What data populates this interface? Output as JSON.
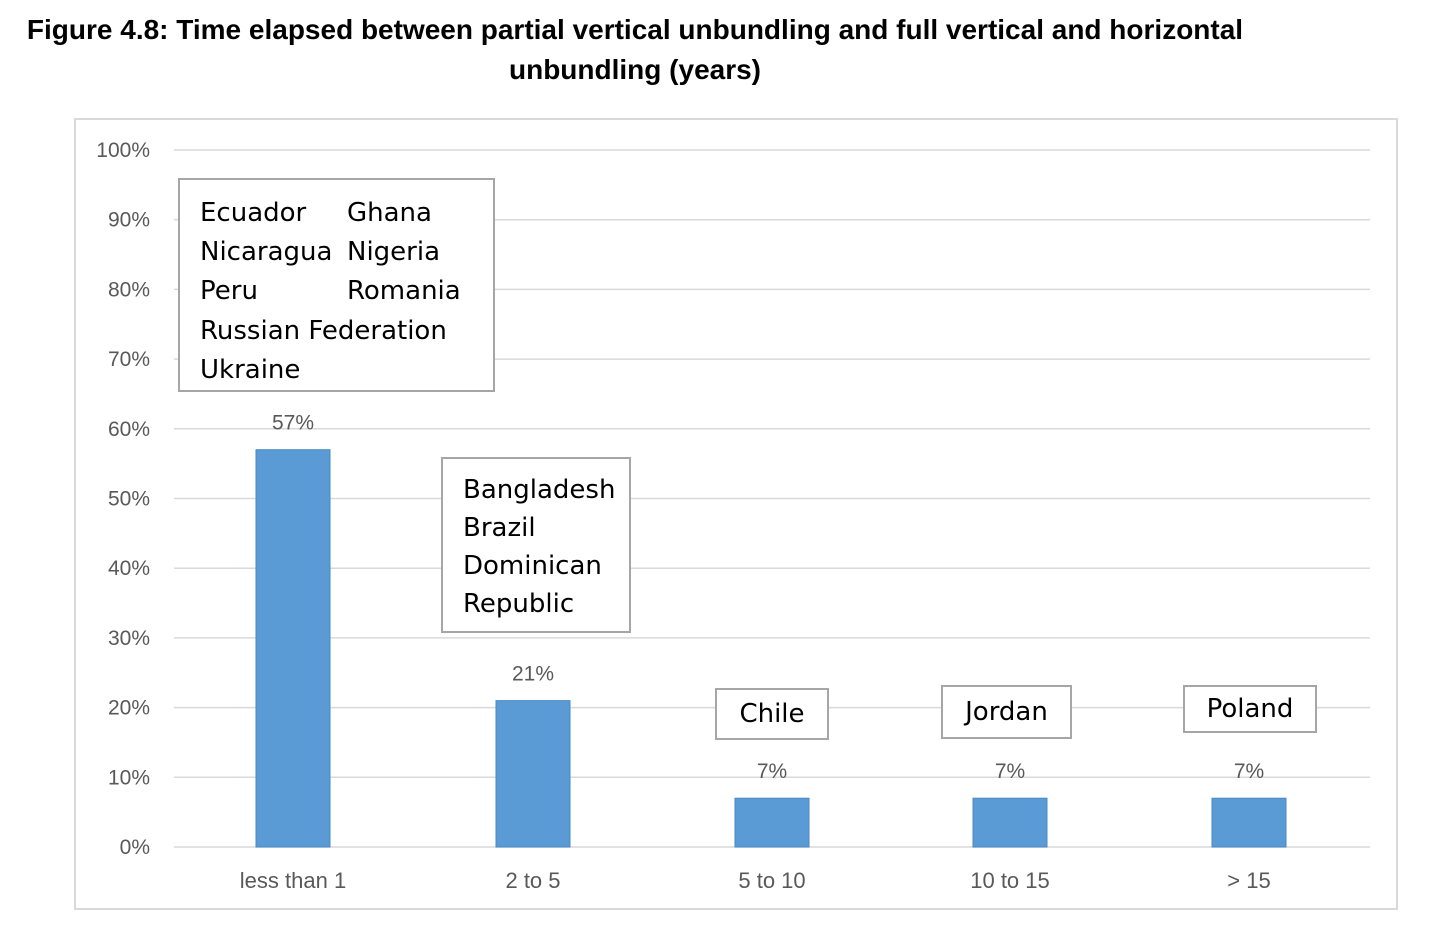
{
  "figure": {
    "title_line1": "Figure 4.8: Time elapsed between partial vertical unbundling and full vertical and horizontal",
    "title_line2": "unbundling (years)"
  },
  "chart_data": {
    "type": "bar",
    "categories": [
      "less than 1",
      "2 to 5",
      "5 to 10",
      "10 to 15",
      "> 15"
    ],
    "values": [
      57,
      21,
      7,
      7,
      7
    ],
    "data_labels": [
      "57%",
      "21%",
      "7%",
      "7%",
      "7%"
    ],
    "ylim": [
      0,
      100
    ],
    "ytick_values": [
      0,
      10,
      20,
      30,
      40,
      50,
      60,
      70,
      80,
      90,
      100
    ],
    "ytick_labels": [
      "0%",
      "10%",
      "20%",
      "30%",
      "40%",
      "50%",
      "60%",
      "70%",
      "80%",
      "90%",
      "100%"
    ],
    "grid": true,
    "bar_color": "#5b9bd5",
    "annotations": {
      "less_than_1": [
        "Ecuador",
        "Ghana",
        "Nicaragua",
        "Nigeria",
        "Peru",
        "Romania",
        "Russian Federation",
        "Ukraine"
      ],
      "two_to_five": [
        "Bangladesh",
        "Brazil",
        "Dominican",
        "Republic"
      ],
      "five_to_ten": "Chile",
      "ten_to_fifteen": "Jordan",
      "over_fifteen": "Poland"
    }
  }
}
